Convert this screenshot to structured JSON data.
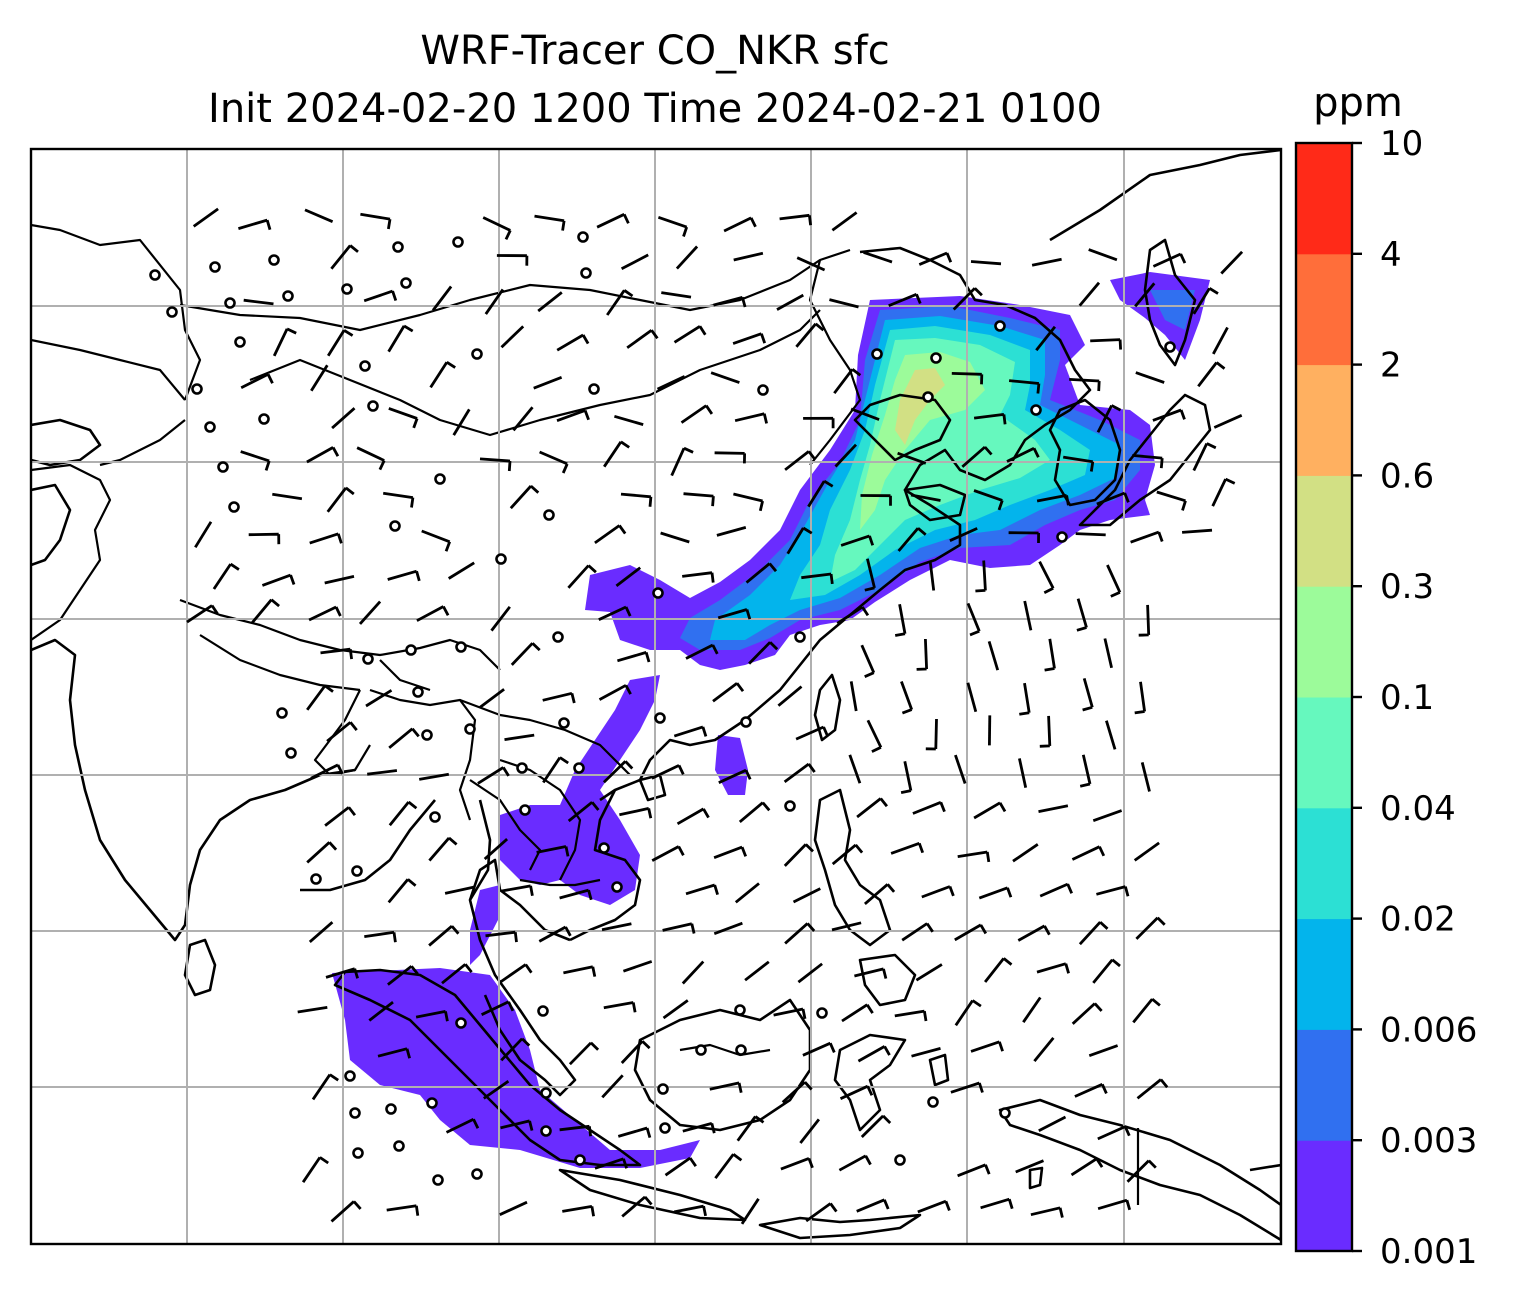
{
  "title_line1": "WRF-Tracer CO_NKR sfc",
  "title_line2": "Init 2024-02-20 1200 Time 2024-02-21 0100",
  "colorbar": {
    "unit": "ppm",
    "levels": [
      {
        "label": "0.001",
        "color": "#6a2cff"
      },
      {
        "label": "0.003",
        "color": "#3070f0"
      },
      {
        "label": "0.006",
        "color": "#03b4ec"
      },
      {
        "label": "0.02",
        "color": "#2ce0d4"
      },
      {
        "label": "0.04",
        "color": "#66f8be"
      },
      {
        "label": "0.1",
        "color": "#9cfb9a"
      },
      {
        "label": "0.3",
        "color": "#d2e084"
      },
      {
        "label": "0.6",
        "color": "#ffb060"
      },
      {
        "label": "2",
        "color": "#ff6e3a"
      },
      {
        "label": "4",
        "color": "#ff2a18"
      },
      {
        "label": "10",
        "color": null
      }
    ]
  },
  "map": {
    "projection": "Lambert conformal (East/Southeast Asia domain)",
    "gridlines": true,
    "overlay": "surface wind barbs",
    "field": "CO_NKR surface tracer concentration"
  }
}
